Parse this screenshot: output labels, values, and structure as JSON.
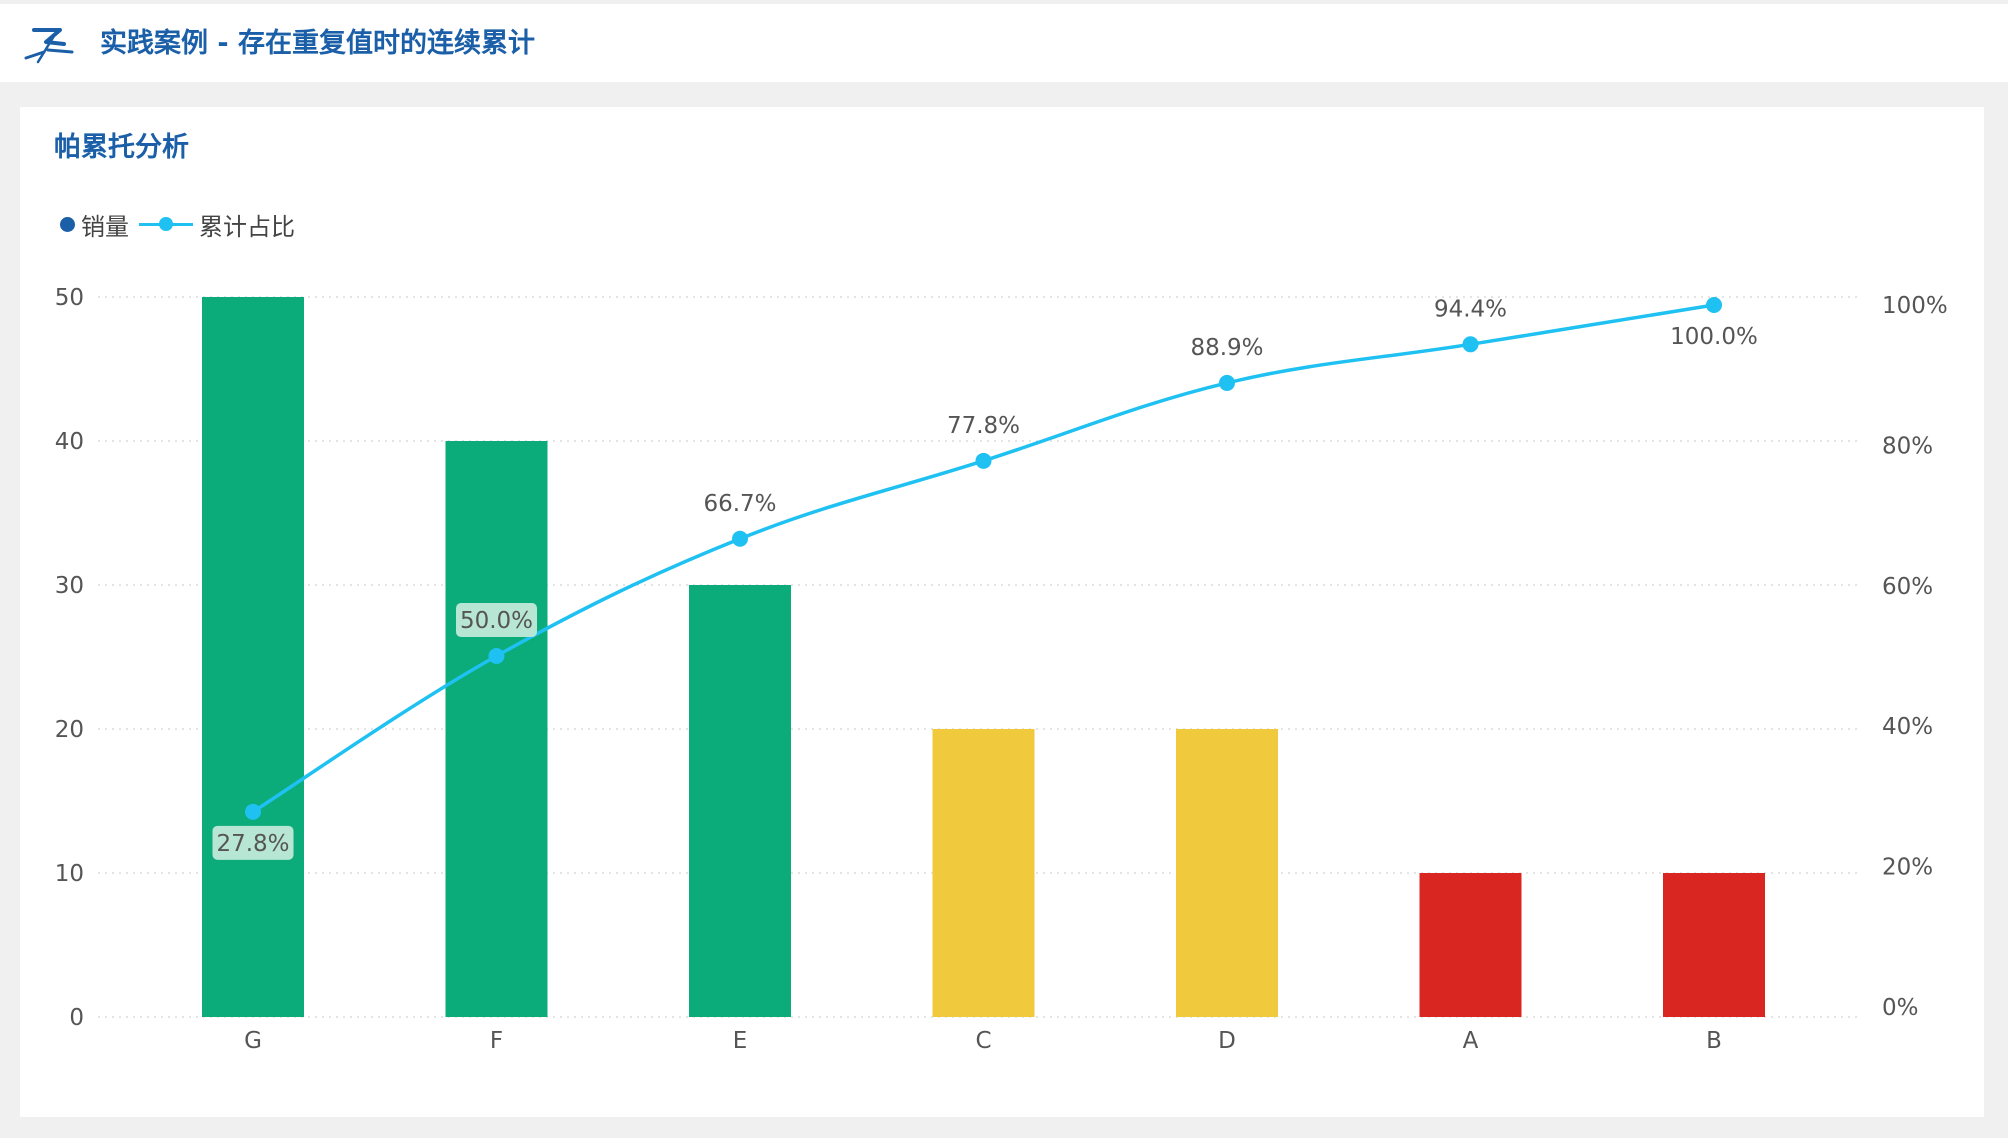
{
  "header": {
    "title": "实践案例 - 存在重复值时的连续累计"
  },
  "card": {
    "title": "帕累托分析"
  },
  "legend": {
    "bar_label": "销量",
    "line_label": "累计占比"
  },
  "colors": {
    "accent": "#1a5fa8",
    "bar_legend": "#1a5fa8",
    "line": "#1ec1f2",
    "tier_a": "#0bab7a",
    "tier_b": "#f0ca3c",
    "tier_c": "#d92621",
    "label_highlight": "#b8e6d5"
  },
  "chart_data": {
    "type": "bar",
    "categories": [
      "G",
      "F",
      "E",
      "C",
      "D",
      "A",
      "B"
    ],
    "series": [
      {
        "name": "销量",
        "type": "bar",
        "axis": "left",
        "values": [
          50,
          40,
          30,
          20,
          20,
          10,
          10
        ],
        "tiers": [
          "A",
          "A",
          "A",
          "B",
          "B",
          "C",
          "C"
        ]
      },
      {
        "name": "累计占比",
        "type": "line",
        "axis": "right",
        "values": [
          27.8,
          50.0,
          66.7,
          77.8,
          88.9,
          94.4,
          100.0
        ],
        "labels": [
          "27.8%",
          "50.0%",
          "66.7%",
          "77.8%",
          "88.9%",
          "94.4%",
          "100.0%"
        ],
        "label_position": [
          "below",
          "above",
          "above",
          "above",
          "above",
          "above",
          "below"
        ],
        "label_highlight": [
          true,
          true,
          false,
          false,
          false,
          false,
          false
        ]
      }
    ],
    "y_left": {
      "lim": [
        0,
        50
      ],
      "ticks": [
        0,
        10,
        20,
        30,
        40,
        50
      ],
      "tick_labels": [
        "0",
        "10",
        "20",
        "30",
        "40",
        "50"
      ]
    },
    "y_right": {
      "lim": [
        0,
        100
      ],
      "ticks": [
        0,
        20,
        40,
        60,
        80,
        100
      ],
      "tick_labels": [
        "0%",
        "20%",
        "40%",
        "60%",
        "80%",
        "100%"
      ]
    },
    "grid": true,
    "legend_position": "top-left"
  }
}
